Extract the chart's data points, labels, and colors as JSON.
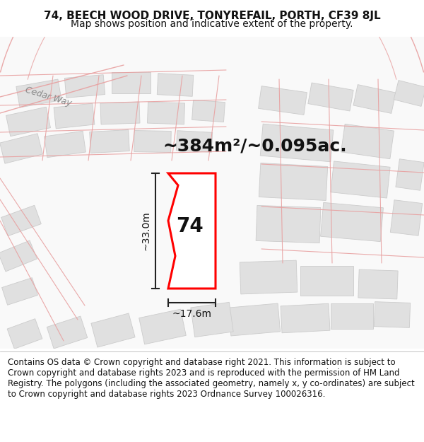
{
  "title_line1": "74, BEECH WOOD DRIVE, TONYREFAIL, PORTH, CF39 8JL",
  "title_line2": "Map shows position and indicative extent of the property.",
  "area_text": "~384m²/~0.095ac.",
  "plot_number": "74",
  "dim_width": "~17.6m",
  "dim_height": "~33.0m",
  "footer_text": "Contains OS data © Crown copyright and database right 2021. This information is subject to Crown copyright and database rights 2023 and is reproduced with the permission of HM Land Registry. The polygons (including the associated geometry, namely x, y co-ordinates) are subject to Crown copyright and database rights 2023 Ordnance Survey 100026316.",
  "bg_color": "#f0f0f0",
  "road_color": "#e8a0a0",
  "building_color": "#e0e0e0",
  "building_edge": "#cccccc",
  "plot_outline_color": "#ff0000",
  "dim_line_color": "#222222",
  "cedar_way_label": "Cedar Way",
  "title_fontsize": 11,
  "subtitle_fontsize": 10,
  "area_fontsize": 18,
  "plot_label_fontsize": 20,
  "dim_fontsize": 10,
  "footer_fontsize": 8.5
}
